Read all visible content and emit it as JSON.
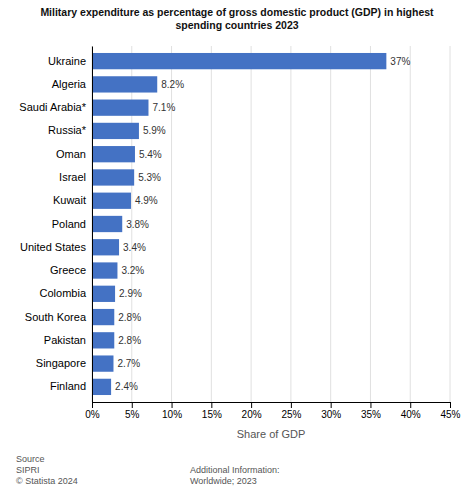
{
  "chart_data": {
    "type": "bar",
    "orientation": "horizontal",
    "title": "Military expenditure as percentage of gross domestic product (GDP) in highest\nspending countries 2023",
    "categories": [
      "Ukraine",
      "Algeria",
      "Saudi Arabia*",
      "Russia*",
      "Oman",
      "Israel",
      "Kuwait",
      "Poland",
      "United States",
      "Greece",
      "Colombia",
      "South Korea",
      "Pakistan",
      "Singapore",
      "Finland"
    ],
    "values": [
      37,
      8.2,
      7.1,
      5.9,
      5.4,
      5.3,
      4.9,
      3.8,
      3.4,
      3.2,
      2.9,
      2.8,
      2.8,
      2.7,
      2.4
    ],
    "value_labels": [
      "37%",
      "8.2%",
      "7.1%",
      "5.9%",
      "5.4%",
      "5.3%",
      "4.9%",
      "3.8%",
      "3.4%",
      "3.2%",
      "2.9%",
      "2.8%",
      "2.8%",
      "2.7%",
      "2.4%"
    ],
    "data_labels": true,
    "color": "#4472c4",
    "xlabel": "Share of GDP",
    "xlim": [
      0,
      45
    ],
    "xticks": [
      {
        "value": 0,
        "label": "0%"
      },
      {
        "value": 5,
        "label": "5%"
      },
      {
        "value": 10,
        "label": "10%"
      },
      {
        "value": 15,
        "label": "15%"
      },
      {
        "value": 20,
        "label": "20%"
      },
      {
        "value": 25,
        "label": "25%"
      },
      {
        "value": 30,
        "label": "30%"
      },
      {
        "value": 35,
        "label": "35%"
      },
      {
        "value": 40,
        "label": "40%"
      },
      {
        "value": 45,
        "label": "45%"
      }
    ],
    "grid": true,
    "annotations": [
      "Source\nSIPRI\n© Statista 2024",
      "Additional Information:\nWorldwide; 2023"
    ]
  }
}
